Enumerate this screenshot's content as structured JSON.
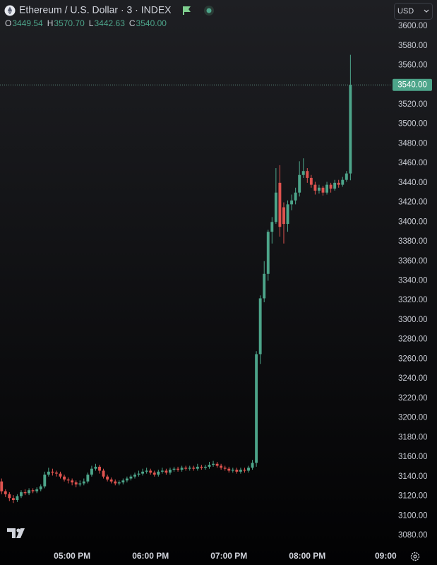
{
  "header": {
    "title": "Ethereum / U.S. Dollar · 3 · INDEX",
    "ohlc": [
      {
        "key": "O",
        "text": "3449.54"
      },
      {
        "key": "H",
        "text": "3570.70"
      },
      {
        "key": "L",
        "text": "3442.63"
      },
      {
        "key": "C",
        "text": "3540.00"
      }
    ],
    "currency": "USD"
  },
  "chart_data": {
    "type": "candlestick",
    "up_color": "#4da58a",
    "down_color": "#e0534f",
    "xlim": [
      16.08,
      21.06
    ],
    "ylim": [
      3067.7,
      3626.7
    ],
    "grid": false,
    "xticks": [
      {
        "value": 17,
        "label": "05:00 PM"
      },
      {
        "value": 18,
        "label": "06:00 PM"
      },
      {
        "value": 19,
        "label": "07:00 PM"
      },
      {
        "value": 20,
        "label": "08:00 PM"
      },
      {
        "value": 21,
        "label": "09:00"
      }
    ],
    "yticks": [
      {
        "value": 3080,
        "label": "3080.00"
      },
      {
        "value": 3100,
        "label": "3100.00"
      },
      {
        "value": 3120,
        "label": "3120.00"
      },
      {
        "value": 3140,
        "label": "3140.00"
      },
      {
        "value": 3160,
        "label": "3160.00"
      },
      {
        "value": 3180,
        "label": "3180.00"
      },
      {
        "value": 3200,
        "label": "3200.00"
      },
      {
        "value": 3220,
        "label": "3220.00"
      },
      {
        "value": 3240,
        "label": "3240.00"
      },
      {
        "value": 3260,
        "label": "3260.00"
      },
      {
        "value": 3280,
        "label": "3280.00"
      },
      {
        "value": 3300,
        "label": "3300.00"
      },
      {
        "value": 3320,
        "label": "3320.00"
      },
      {
        "value": 3340,
        "label": "3340.00"
      },
      {
        "value": 3360,
        "label": "3360.00"
      },
      {
        "value": 3380,
        "label": "3380.00"
      },
      {
        "value": 3400,
        "label": "3400.00"
      },
      {
        "value": 3420,
        "label": "3420.00"
      },
      {
        "value": 3440,
        "label": "3440.00"
      },
      {
        "value": 3460,
        "label": "3460.00"
      },
      {
        "value": 3480,
        "label": "3480.00"
      },
      {
        "value": 3500,
        "label": "3500.00"
      },
      {
        "value": 3520,
        "label": "3520.00"
      },
      {
        "value": 3560,
        "label": "3560.00"
      },
      {
        "value": 3580,
        "label": "3580.00"
      },
      {
        "value": 3600,
        "label": "3600.00"
      }
    ],
    "last_price": {
      "value": 3540,
      "label": "3540.00"
    },
    "x": [
      16.1,
      16.15,
      16.2,
      16.25,
      16.3,
      16.35,
      16.4,
      16.45,
      16.5,
      16.55,
      16.6,
      16.65,
      16.7,
      16.75,
      16.8,
      16.85,
      16.9,
      16.95,
      17.0,
      17.05,
      17.1,
      17.15,
      17.2,
      17.25,
      17.3,
      17.35,
      17.4,
      17.45,
      17.5,
      17.55,
      17.6,
      17.65,
      17.7,
      17.75,
      17.8,
      17.85,
      17.9,
      17.95,
      18.0,
      18.05,
      18.1,
      18.15,
      18.2,
      18.25,
      18.3,
      18.35,
      18.4,
      18.45,
      18.5,
      18.55,
      18.6,
      18.65,
      18.7,
      18.75,
      18.8,
      18.85,
      18.9,
      18.95,
      19.0,
      19.05,
      19.1,
      19.15,
      19.2,
      19.25,
      19.3,
      19.35,
      19.4,
      19.45,
      19.5,
      19.55,
      19.6,
      19.65,
      19.7,
      19.75,
      19.8,
      19.85,
      19.9,
      19.95,
      20.0,
      20.05,
      20.1,
      20.15,
      20.2,
      20.25,
      20.3,
      20.35,
      20.4,
      20.45,
      20.5,
      20.55
    ],
    "open": [
      3135,
      3125,
      3122,
      3118,
      3116,
      3120,
      3124,
      3123,
      3126,
      3125,
      3127,
      3130,
      3142,
      3145,
      3144,
      3143,
      3140,
      3137,
      3136,
      3134,
      3132,
      3133,
      3135,
      3142,
      3148,
      3150,
      3146,
      3140,
      3137,
      3135,
      3133,
      3134,
      3136,
      3138,
      3140,
      3142,
      3143,
      3145,
      3146,
      3144,
      3142,
      3145,
      3146,
      3144,
      3147,
      3148,
      3147,
      3149,
      3148,
      3149,
      3148,
      3150,
      3149,
      3150,
      3152,
      3153,
      3151,
      3149,
      3148,
      3146,
      3147,
      3145,
      3147,
      3146,
      3149,
      3154,
      3265,
      3322,
      3347,
      3390,
      3400,
      3440,
      3415,
      3398,
      3418,
      3422,
      3430,
      3448,
      3452,
      3445,
      3438,
      3432,
      3435,
      3430,
      3438,
      3434,
      3440,
      3438,
      3443,
      3449.54
    ],
    "high": [
      3138,
      3127,
      3124,
      3121,
      3122,
      3126,
      3127,
      3128,
      3128,
      3129,
      3132,
      3145,
      3149,
      3148,
      3146,
      3145,
      3142,
      3139,
      3138,
      3136,
      3136,
      3138,
      3144,
      3151,
      3153,
      3152,
      3148,
      3142,
      3139,
      3137,
      3136,
      3138,
      3140,
      3142,
      3144,
      3146,
      3148,
      3149,
      3148,
      3146,
      3147,
      3149,
      3148,
      3149,
      3150,
      3150,
      3151,
      3151,
      3151,
      3151,
      3153,
      3152,
      3152,
      3155,
      3156,
      3155,
      3153,
      3151,
      3150,
      3149,
      3149,
      3149,
      3149,
      3151,
      3157,
      3268,
      3325,
      3360,
      3392,
      3405,
      3455,
      3458,
      3420,
      3422,
      3428,
      3435,
      3462,
      3465,
      3455,
      3448,
      3441,
      3438,
      3437,
      3441,
      3440,
      3443,
      3443,
      3446,
      3452,
      3570.7
    ],
    "low": [
      3122,
      3119,
      3115,
      3113,
      3114,
      3118,
      3121,
      3121,
      3123,
      3123,
      3125,
      3128,
      3140,
      3141,
      3140,
      3138,
      3135,
      3133,
      3131,
      3129,
      3130,
      3131,
      3133,
      3140,
      3146,
      3143,
      3138,
      3135,
      3133,
      3131,
      3131,
      3132,
      3134,
      3136,
      3138,
      3140,
      3141,
      3143,
      3142,
      3140,
      3140,
      3143,
      3142,
      3142,
      3145,
      3145,
      3145,
      3146,
      3146,
      3146,
      3146,
      3147,
      3147,
      3148,
      3150,
      3149,
      3147,
      3146,
      3144,
      3144,
      3143,
      3143,
      3144,
      3144,
      3147,
      3150,
      3255,
      3318,
      3340,
      3378,
      3398,
      3385,
      3378,
      3390,
      3412,
      3418,
      3426,
      3445,
      3440,
      3435,
      3428,
      3429,
      3427,
      3428,
      3430,
      3432,
      3435,
      3436,
      3441,
      3442.63
    ],
    "close": [
      3125,
      3122,
      3118,
      3116,
      3120,
      3124,
      3123,
      3126,
      3125,
      3127,
      3130,
      3142,
      3145,
      3144,
      3143,
      3140,
      3137,
      3136,
      3134,
      3132,
      3133,
      3135,
      3142,
      3148,
      3150,
      3146,
      3140,
      3137,
      3135,
      3133,
      3134,
      3136,
      3138,
      3140,
      3142,
      3143,
      3145,
      3146,
      3144,
      3142,
      3145,
      3146,
      3144,
      3147,
      3148,
      3147,
      3149,
      3148,
      3149,
      3148,
      3150,
      3149,
      3150,
      3152,
      3153,
      3151,
      3149,
      3148,
      3146,
      3147,
      3145,
      3147,
      3146,
      3149,
      3154,
      3265,
      3322,
      3347,
      3390,
      3400,
      3430,
      3395,
      3398,
      3418,
      3422,
      3430,
      3448,
      3452,
      3445,
      3438,
      3432,
      3435,
      3430,
      3438,
      3434,
      3440,
      3438,
      3443,
      3449.54,
      3540.0
    ]
  }
}
